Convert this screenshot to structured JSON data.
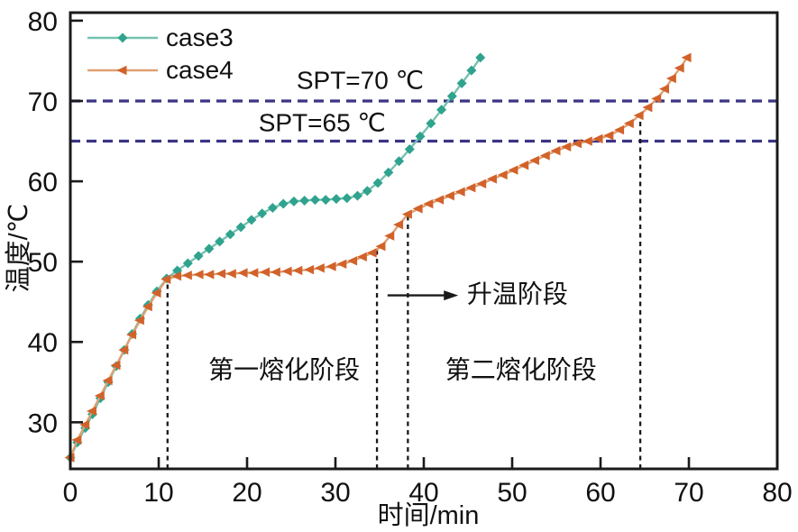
{
  "chart_data": {
    "type": "line",
    "title": "",
    "xlabel": "时间/min",
    "ylabel": "温度/℃",
    "xlim": [
      0,
      80
    ],
    "ylim": [
      24.2,
      81
    ],
    "xticks": [
      0,
      10,
      20,
      30,
      40,
      50,
      60,
      70,
      80
    ],
    "yticks": [
      30,
      40,
      50,
      60,
      70,
      80
    ],
    "grid": false,
    "legend_position": "top-left",
    "series": [
      {
        "name": "case3",
        "marker": "diamond",
        "line_color": "#76c1b0",
        "marker_color": "#2fa38e",
        "points": [
          [
            0,
            25.6
          ],
          [
            0.8,
            27.5
          ],
          [
            1.7,
            29.3
          ],
          [
            2.5,
            31
          ],
          [
            3.4,
            33
          ],
          [
            4.3,
            35
          ],
          [
            5.2,
            37
          ],
          [
            6.1,
            39
          ],
          [
            7,
            41
          ],
          [
            7.9,
            42.9
          ],
          [
            8.8,
            44.6
          ],
          [
            9.8,
            46.3
          ],
          [
            10.9,
            47.9
          ],
          [
            12.1,
            48.9
          ],
          [
            13.3,
            49.8
          ],
          [
            14.5,
            50.7
          ],
          [
            15.7,
            51.6
          ],
          [
            16.9,
            52.5
          ],
          [
            18.1,
            53.4
          ],
          [
            19.3,
            54.3
          ],
          [
            20.5,
            55.2
          ],
          [
            21.7,
            56
          ],
          [
            22.9,
            56.7
          ],
          [
            24.1,
            57.2
          ],
          [
            25.3,
            57.5
          ],
          [
            26.5,
            57.6
          ],
          [
            27.7,
            57.7
          ],
          [
            28.9,
            57.7
          ],
          [
            30.1,
            57.8
          ],
          [
            31.3,
            57.9
          ],
          [
            32.5,
            58.2
          ],
          [
            33.6,
            58.8
          ],
          [
            34.8,
            59.8
          ],
          [
            36,
            61.1
          ],
          [
            37.2,
            62.5
          ],
          [
            38.4,
            64
          ],
          [
            39.6,
            65.6
          ],
          [
            40.8,
            67.2
          ],
          [
            42,
            68.9
          ],
          [
            43.2,
            70.6
          ],
          [
            44.3,
            72.2
          ],
          [
            45.4,
            73.8
          ],
          [
            46.4,
            75.4
          ]
        ]
      },
      {
        "name": "case4",
        "marker": "triangle-left",
        "line_color": "#dfa071",
        "marker_color": "#d2622a",
        "points": [
          [
            0,
            25.6
          ],
          [
            0.8,
            27.8
          ],
          [
            1.7,
            29.7
          ],
          [
            2.5,
            31.4
          ],
          [
            3.4,
            33.3
          ],
          [
            4.3,
            35.2
          ],
          [
            5.2,
            37.1
          ],
          [
            6.1,
            39
          ],
          [
            7,
            40.9
          ],
          [
            7.9,
            42.7
          ],
          [
            8.8,
            44.4
          ],
          [
            9.8,
            46.1
          ],
          [
            10.9,
            47.8
          ],
          [
            12.1,
            48.2
          ],
          [
            13.3,
            48.3
          ],
          [
            14.6,
            48.4
          ],
          [
            15.8,
            48.4
          ],
          [
            17.1,
            48.5
          ],
          [
            18.3,
            48.5
          ],
          [
            19.6,
            48.6
          ],
          [
            20.8,
            48.6
          ],
          [
            22.1,
            48.7
          ],
          [
            23.3,
            48.7
          ],
          [
            24.6,
            48.8
          ],
          [
            25.8,
            48.9
          ],
          [
            27.1,
            49
          ],
          [
            28.3,
            49.2
          ],
          [
            29.6,
            49.4
          ],
          [
            30.8,
            49.7
          ],
          [
            32,
            50.1
          ],
          [
            33.1,
            50.6
          ],
          [
            34.2,
            51.1
          ],
          [
            35.2,
            51.9
          ],
          [
            36.2,
            53.2
          ],
          [
            37.2,
            54.6
          ],
          [
            38.2,
            55.9
          ],
          [
            39.4,
            56.6
          ],
          [
            40.6,
            57.2
          ],
          [
            41.8,
            57.7
          ],
          [
            43,
            58.2
          ],
          [
            44.2,
            58.7
          ],
          [
            45.4,
            59.2
          ],
          [
            46.6,
            59.7
          ],
          [
            47.8,
            60.3
          ],
          [
            49,
            60.8
          ],
          [
            50.2,
            61.4
          ],
          [
            51.4,
            62
          ],
          [
            52.6,
            62.6
          ],
          [
            53.8,
            63.2
          ],
          [
            55,
            63.8
          ],
          [
            56.2,
            64.3
          ],
          [
            57.4,
            64.7
          ],
          [
            58.6,
            65
          ],
          [
            59.8,
            65.3
          ],
          [
            61,
            65.7
          ],
          [
            62.2,
            66.4
          ],
          [
            63.3,
            67.2
          ],
          [
            64.4,
            68.2
          ],
          [
            65.4,
            69.2
          ],
          [
            66.4,
            70.3
          ],
          [
            67.3,
            71.5
          ],
          [
            68.1,
            72.8
          ],
          [
            69,
            74.1
          ],
          [
            69.8,
            75.4
          ]
        ]
      }
    ],
    "reference_lines": [
      {
        "label": "SPT=70 ℃",
        "y": 70,
        "label_x": 32.8,
        "label_y": 72.5,
        "style": "dashed"
      },
      {
        "label": "SPT=65 ℃",
        "y": 65,
        "label_x": 28.5,
        "label_y": 67.2,
        "style": "dashed"
      }
    ],
    "event_lines": [
      {
        "x": 11.0,
        "y_top": 47.7
      },
      {
        "x": 34.7,
        "y_top": 51.4
      },
      {
        "x": 38.2,
        "y_top": 56.1
      },
      {
        "x": 64.5,
        "y_top": 68.5
      }
    ],
    "annotations": [
      {
        "text": "第一熔化阶段",
        "x": 24.2,
        "y": 36.4
      },
      {
        "text": "第二熔化阶段",
        "x": 51.0,
        "y": 36.4
      },
      {
        "text": "升温阶段",
        "x": 50.6,
        "y": 45.9,
        "arrow": {
          "from_x": 35.9,
          "to_x": 43.9,
          "y": 45.8
        }
      }
    ],
    "colors": {
      "reference_dashed": "#3b3585",
      "event_dashed": "#1a1a1a",
      "axis": "#1a1a1a"
    }
  }
}
